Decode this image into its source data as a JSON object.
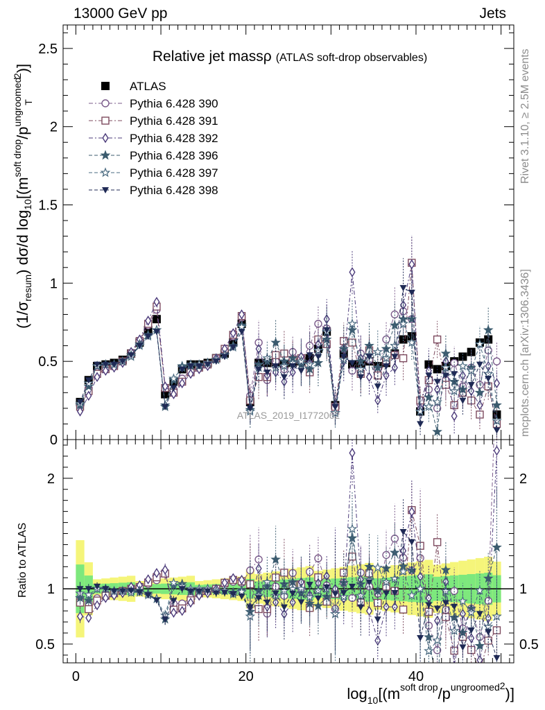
{
  "header": {
    "left": "13000 GeV pp",
    "right": "Jets"
  },
  "side_labels": {
    "rivet": "Rivet 3.1.10, ≥ 2.5M events",
    "mcplots": "mcplots.cern.ch [arXiv:1306.3436]"
  },
  "chart_data": {
    "type": "scatter",
    "title_main": "Relative jet massρ",
    "title_sub": "(ATLAS soft-drop observables)",
    "watermark": "ATLAS_2019_I1772062",
    "top_panel": {
      "ylabel": "(1/σresum) dσ/d log10[(m^soft drop/pT^ungroomed)2]",
      "ylim": [
        0,
        2.65
      ],
      "yticks": [
        "0",
        "0.5",
        "1",
        "1.5",
        "2",
        "2.5"
      ]
    },
    "ratio_panel": {
      "ylabel": "Ratio to ATLAS",
      "ylim": [
        0.33,
        2.35
      ],
      "yticks": [
        "0.5",
        "1",
        "2"
      ]
    },
    "xlabel": "log10[(m^soft drop/pT^ungroomed)2]",
    "xlim": [
      -1.5,
      51.5
    ],
    "xticks": [
      "0",
      "20",
      "40"
    ],
    "x": [
      0.5,
      1.5,
      2.5,
      3.5,
      4.5,
      5.5,
      6.5,
      7.5,
      8.5,
      9.5,
      10.5,
      11.5,
      12.5,
      13.5,
      14.5,
      15.5,
      16.5,
      17.5,
      18.5,
      19.5,
      20.5,
      21.5,
      22.5,
      23.5,
      24.5,
      25.5,
      26.5,
      27.5,
      28.5,
      29.5,
      30.5,
      31.5,
      32.5,
      33.5,
      34.5,
      35.5,
      36.5,
      37.5,
      38.5,
      39.5,
      40.5,
      41.5,
      42.5,
      43.5,
      44.5,
      45.5,
      46.5,
      47.5,
      48.5,
      49.5
    ],
    "series": [
      {
        "name": "ATLAS",
        "kind": "data",
        "color": "#000000",
        "marker": "square-filled",
        "values": [
          0.24,
          0.38,
          0.47,
          0.48,
          0.49,
          0.51,
          0.55,
          0.62,
          0.7,
          0.77,
          0.29,
          0.37,
          0.45,
          0.48,
          0.48,
          0.49,
          0.52,
          0.55,
          0.62,
          0.74,
          0.24,
          0.49,
          0.49,
          0.49,
          0.48,
          0.49,
          0.5,
          0.52,
          0.58,
          0.69,
          0.22,
          0.55,
          0.48,
          0.48,
          0.5,
          0.47,
          0.49,
          0.55,
          0.64,
          0.66,
          0.18,
          0.48,
          0.45,
          0.47,
          0.5,
          0.53,
          0.56,
          0.62,
          0.64,
          0.16
        ]
      },
      {
        "name": "Pythia 6.428 390",
        "color": "#7a5a8a",
        "marker": "circle-open",
        "values": [
          0.22,
          0.33,
          0.43,
          0.46,
          0.47,
          0.5,
          0.55,
          0.63,
          0.73,
          0.83,
          0.33,
          0.32,
          0.39,
          0.44,
          0.46,
          0.48,
          0.52,
          0.57,
          0.66,
          0.78,
          0.28,
          0.62,
          0.38,
          0.5,
          0.45,
          0.56,
          0.5,
          0.6,
          0.74,
          0.71,
          0.18,
          0.58,
          0.44,
          0.55,
          0.51,
          0.45,
          0.64,
          0.8,
          0.82,
          0.77,
          0.23,
          0.32,
          0.2,
          0.38,
          0.49,
          0.34,
          0.46,
          0.35,
          0.57,
          0.5
        ]
      },
      {
        "name": "Pythia 6.428 391",
        "color": "#7d4a5e",
        "marker": "square-open",
        "values": [
          0.21,
          0.31,
          0.42,
          0.45,
          0.47,
          0.5,
          0.55,
          0.63,
          0.74,
          0.85,
          0.33,
          0.3,
          0.37,
          0.43,
          0.46,
          0.48,
          0.52,
          0.58,
          0.67,
          0.79,
          0.25,
          0.4,
          0.4,
          0.54,
          0.55,
          0.51,
          0.52,
          0.43,
          0.64,
          0.61,
          0.21,
          0.63,
          0.62,
          0.42,
          0.57,
          0.41,
          0.5,
          0.54,
          0.52,
          1.13,
          0.25,
          0.38,
          0.64,
          0.35,
          0.22,
          0.3,
          0.25,
          0.16,
          0.34,
          0.1
        ]
      },
      {
        "name": "Pythia 6.428 392",
        "color": "#4b3a7a",
        "marker": "diamond-open",
        "values": [
          0.18,
          0.28,
          0.4,
          0.44,
          0.46,
          0.49,
          0.56,
          0.64,
          0.76,
          0.88,
          0.34,
          0.29,
          0.36,
          0.42,
          0.45,
          0.47,
          0.52,
          0.58,
          0.68,
          0.8,
          0.2,
          0.58,
          0.41,
          0.43,
          0.37,
          0.43,
          0.53,
          0.49,
          0.61,
          0.77,
          0.22,
          0.5,
          1.07,
          0.52,
          0.4,
          0.25,
          0.41,
          0.46,
          0.86,
          1.12,
          0.2,
          0.44,
          0.32,
          0.5,
          0.15,
          0.41,
          0.31,
          0.22,
          0.47,
          0.36
        ]
      },
      {
        "name": "Pythia 6.428 396",
        "color": "#3b5b6e",
        "marker": "star-filled",
        "values": [
          0.22,
          0.34,
          0.47,
          0.48,
          0.48,
          0.5,
          0.54,
          0.61,
          0.67,
          0.7,
          0.21,
          0.38,
          0.47,
          0.47,
          0.47,
          0.49,
          0.51,
          0.54,
          0.6,
          0.73,
          0.19,
          0.48,
          0.5,
          0.62,
          0.5,
          0.52,
          0.48,
          0.45,
          0.49,
          0.64,
          0.17,
          0.58,
          0.7,
          0.5,
          0.6,
          0.46,
          0.58,
          0.73,
          0.77,
          0.77,
          0.18,
          0.27,
          0.05,
          0.55,
          0.37,
          0.32,
          0.46,
          0.3,
          0.7,
          0.22
        ]
      },
      {
        "name": "Pythia 6.428 397",
        "color": "#4a6a80",
        "marker": "star-open",
        "values": [
          0.23,
          0.36,
          0.47,
          0.48,
          0.48,
          0.5,
          0.53,
          0.6,
          0.66,
          0.7,
          0.22,
          0.39,
          0.46,
          0.48,
          0.48,
          0.49,
          0.51,
          0.54,
          0.59,
          0.72,
          0.18,
          0.46,
          0.52,
          0.46,
          0.47,
          0.49,
          0.5,
          0.48,
          0.57,
          0.69,
          0.17,
          0.51,
          0.74,
          0.45,
          0.54,
          0.56,
          0.52,
          0.6,
          0.74,
          0.62,
          0.18,
          0.21,
          0.24,
          0.46,
          0.31,
          0.47,
          0.44,
          0.61,
          0.42,
          0.12
        ]
      },
      {
        "name": "Pythia 6.428 398",
        "color": "#1f2a55",
        "marker": "triangle-down-filled",
        "values": [
          0.24,
          0.38,
          0.48,
          0.48,
          0.48,
          0.5,
          0.54,
          0.6,
          0.66,
          0.69,
          0.21,
          0.33,
          0.45,
          0.47,
          0.47,
          0.48,
          0.5,
          0.53,
          0.59,
          0.69,
          0.2,
          0.45,
          0.43,
          0.47,
          0.4,
          0.47,
          0.44,
          0.54,
          0.53,
          0.7,
          0.21,
          0.53,
          0.49,
          0.4,
          0.53,
          0.34,
          0.47,
          0.53,
          0.97,
          0.94,
          0.1,
          0.41,
          0.37,
          0.41,
          0.42,
          0.25,
          0.35,
          0.48,
          0.39,
          0.06
        ]
      }
    ]
  }
}
